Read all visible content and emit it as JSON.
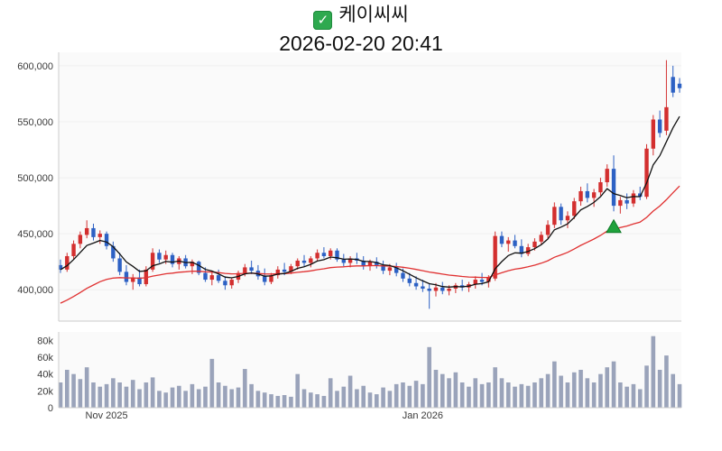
{
  "header": {
    "title": "케이씨씨",
    "datetime": "2026-02-20 20:41",
    "check_glyph": "✓"
  },
  "chart_data": {
    "type": "candlestick",
    "title": "케이씨씨",
    "subtitle": "2026-02-20 20:41",
    "up_color": "#d32f2f",
    "down_color": "#2d61c4",
    "volume_color": "#9aa3ba",
    "panel_bg": "#fafafa",
    "axis_color": "#cccccc",
    "label_color": "#3a3a3a",
    "grid": false,
    "price_axis": {
      "range": [
        372000,
        612000
      ],
      "ticks": [
        {
          "value": 600000,
          "label": "600,000"
        },
        {
          "value": 550000,
          "label": "550,000"
        },
        {
          "value": 500000,
          "label": "500,000"
        },
        {
          "value": 450000,
          "label": "450,000"
        },
        {
          "value": 400000,
          "label": "400,000"
        }
      ]
    },
    "volume_axis": {
      "range": [
        0,
        90000
      ],
      "ticks": [
        {
          "value": 0,
          "label": "0"
        },
        {
          "value": 20000,
          "label": "20k"
        },
        {
          "value": 40000,
          "label": "40k"
        },
        {
          "value": 60000,
          "label": "60k"
        },
        {
          "value": 80000,
          "label": "80k"
        }
      ]
    },
    "x_ticks": [
      {
        "index": 7,
        "label": "Nov 2025"
      },
      {
        "index": 55,
        "label": "Jan 2026"
      }
    ],
    "moving_averages": [
      {
        "name": "slow",
        "period": 30,
        "seed": 386000,
        "color": "#e03131"
      },
      {
        "name": "fast",
        "period": 6,
        "color": "#111111"
      }
    ],
    "marker": {
      "type": "triangle-up",
      "index": 84,
      "price": 456000,
      "color": "#1fa23c",
      "edge": "#0c7a26"
    },
    "candles": [
      [
        422000,
        427000,
        415000,
        418000,
        30000
      ],
      [
        418000,
        433000,
        416000,
        430000,
        45000
      ],
      [
        430000,
        444000,
        427000,
        441000,
        40000
      ],
      [
        441000,
        452000,
        437000,
        449000,
        34000
      ],
      [
        449000,
        462000,
        446000,
        455000,
        48000
      ],
      [
        455000,
        459000,
        444000,
        447000,
        30000
      ],
      [
        447000,
        453000,
        441000,
        450000,
        25000
      ],
      [
        450000,
        452000,
        436000,
        439000,
        28000
      ],
      [
        439000,
        443000,
        425000,
        428000,
        35000
      ],
      [
        428000,
        433000,
        413000,
        416000,
        30000
      ],
      [
        416000,
        422000,
        404000,
        407000,
        25000
      ],
      [
        407000,
        414000,
        400000,
        411000,
        33000
      ],
      [
        411000,
        418000,
        403000,
        405000,
        22000
      ],
      [
        405000,
        421000,
        403000,
        418000,
        30000
      ],
      [
        418000,
        437000,
        416000,
        433000,
        36000
      ],
      [
        433000,
        436000,
        424000,
        427000,
        20000
      ],
      [
        427000,
        435000,
        423000,
        431000,
        18000
      ],
      [
        431000,
        433000,
        420000,
        423000,
        24000
      ],
      [
        423000,
        430000,
        418000,
        428000,
        26000
      ],
      [
        428000,
        431000,
        419000,
        421000,
        20000
      ],
      [
        421000,
        427000,
        414000,
        425000,
        28000
      ],
      [
        425000,
        426000,
        413000,
        415000,
        22000
      ],
      [
        415000,
        420000,
        407000,
        409000,
        25000
      ],
      [
        409000,
        416000,
        404000,
        413000,
        58000
      ],
      [
        413000,
        418000,
        406000,
        408000,
        30000
      ],
      [
        408000,
        412000,
        400000,
        404000,
        26000
      ],
      [
        404000,
        411000,
        401000,
        409000,
        22000
      ],
      [
        409000,
        417000,
        406000,
        415000,
        24000
      ],
      [
        415000,
        423000,
        412000,
        420000,
        46000
      ],
      [
        420000,
        426000,
        414000,
        417000,
        28000
      ],
      [
        417000,
        422000,
        409000,
        412000,
        20000
      ],
      [
        412000,
        419000,
        404000,
        407000,
        18000
      ],
      [
        407000,
        415000,
        405000,
        413000,
        16000
      ],
      [
        413000,
        421000,
        410000,
        418000,
        14000
      ],
      [
        418000,
        424000,
        413000,
        416000,
        15000
      ],
      [
        416000,
        423000,
        414000,
        421000,
        13000
      ],
      [
        421000,
        428000,
        418000,
        426000,
        40000
      ],
      [
        426000,
        431000,
        421000,
        424000,
        22000
      ],
      [
        424000,
        430000,
        420000,
        428000,
        18000
      ],
      [
        428000,
        436000,
        426000,
        433000,
        16000
      ],
      [
        433000,
        438000,
        428000,
        430000,
        14000
      ],
      [
        430000,
        437000,
        427000,
        435000,
        35000
      ],
      [
        435000,
        437000,
        425000,
        427000,
        20000
      ],
      [
        427000,
        432000,
        421000,
        424000,
        25000
      ],
      [
        424000,
        430000,
        420000,
        428000,
        38000
      ],
      [
        428000,
        433000,
        423000,
        426000,
        22000
      ],
      [
        426000,
        430000,
        418000,
        421000,
        26000
      ],
      [
        421000,
        427000,
        417000,
        425000,
        18000
      ],
      [
        425000,
        429000,
        419000,
        422000,
        16000
      ],
      [
        422000,
        426000,
        414000,
        417000,
        24000
      ],
      [
        417000,
        423000,
        413000,
        420000,
        20000
      ],
      [
        420000,
        424000,
        412000,
        415000,
        28000
      ],
      [
        415000,
        419000,
        407000,
        410000,
        30000
      ],
      [
        410000,
        415000,
        403000,
        406000,
        26000
      ],
      [
        406000,
        412000,
        400000,
        403000,
        32000
      ],
      [
        403000,
        409000,
        398000,
        401000,
        28000
      ],
      [
        401000,
        405000,
        383000,
        399000,
        72000
      ],
      [
        399000,
        406000,
        394000,
        402000,
        45000
      ],
      [
        402000,
        407000,
        396000,
        399000,
        40000
      ],
      [
        399000,
        404000,
        395000,
        401000,
        35000
      ],
      [
        401000,
        406000,
        397000,
        404000,
        42000
      ],
      [
        404000,
        409000,
        399000,
        402000,
        30000
      ],
      [
        402000,
        407000,
        398000,
        405000,
        25000
      ],
      [
        405000,
        412000,
        401000,
        409000,
        35000
      ],
      [
        409000,
        415000,
        404000,
        407000,
        28000
      ],
      [
        407000,
        413000,
        402000,
        411000,
        30000
      ],
      [
        410000,
        452000,
        408000,
        448000,
        48000
      ],
      [
        448000,
        452000,
        438000,
        441000,
        35000
      ],
      [
        441000,
        447000,
        434000,
        444000,
        30000
      ],
      [
        444000,
        449000,
        437000,
        439000,
        25000
      ],
      [
        439000,
        445000,
        429000,
        432000,
        28000
      ],
      [
        432000,
        441000,
        430000,
        438000,
        26000
      ],
      [
        438000,
        446000,
        435000,
        443000,
        30000
      ],
      [
        443000,
        452000,
        440000,
        449000,
        35000
      ],
      [
        449000,
        462000,
        446000,
        458000,
        40000
      ],
      [
        458000,
        478000,
        455000,
        474000,
        55000
      ],
      [
        474000,
        477000,
        458000,
        462000,
        38000
      ],
      [
        462000,
        470000,
        455000,
        466000,
        30000
      ],
      [
        466000,
        482000,
        463000,
        479000,
        42000
      ],
      [
        479000,
        492000,
        475000,
        488000,
        45000
      ],
      [
        488000,
        495000,
        478000,
        482000,
        35000
      ],
      [
        482000,
        490000,
        474000,
        487000,
        30000
      ],
      [
        487000,
        500000,
        484000,
        496000,
        40000
      ],
      [
        496000,
        512000,
        492000,
        508000,
        48000
      ],
      [
        508000,
        520000,
        470000,
        475000,
        55000
      ],
      [
        475000,
        483000,
        468000,
        480000,
        30000
      ],
      [
        480000,
        486000,
        472000,
        477000,
        25000
      ],
      [
        477000,
        489000,
        474000,
        486000,
        28000
      ],
      [
        486000,
        492000,
        480000,
        483000,
        22000
      ],
      [
        483000,
        530000,
        481000,
        526000,
        50000
      ],
      [
        526000,
        556000,
        520000,
        552000,
        85000
      ],
      [
        552000,
        560000,
        536000,
        540000,
        45000
      ],
      [
        542000,
        605000,
        538000,
        563000,
        62000
      ],
      [
        590000,
        600000,
        572000,
        576000,
        40000
      ],
      [
        584000,
        589000,
        576000,
        580000,
        28000
      ]
    ]
  }
}
